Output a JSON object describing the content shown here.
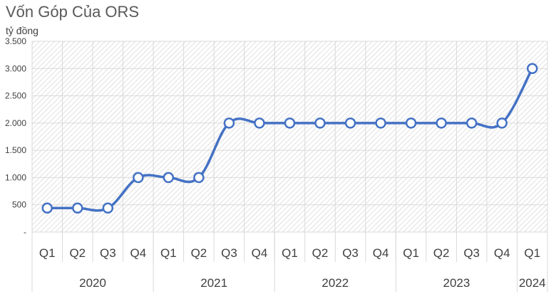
{
  "chart_data": {
    "type": "line",
    "title": "Vốn Góp Của ORS",
    "unit_label": "tỷ đồng",
    "categories": [
      "Q1",
      "Q2",
      "Q3",
      "Q4",
      "Q1",
      "Q2",
      "Q3",
      "Q4",
      "Q1",
      "Q2",
      "Q3",
      "Q4",
      "Q1",
      "Q2",
      "Q3",
      "Q4",
      "Q1"
    ],
    "years": [
      {
        "label": "2020",
        "quarters": 4
      },
      {
        "label": "2021",
        "quarters": 4
      },
      {
        "label": "2022",
        "quarters": 4
      },
      {
        "label": "2023",
        "quarters": 4
      },
      {
        "label": "2024",
        "quarters": 1
      }
    ],
    "values": [
      440,
      440,
      440,
      1000,
      1000,
      1000,
      2000,
      2000,
      2000,
      2000,
      2000,
      2000,
      2000,
      2000,
      2000,
      2000,
      3000
    ],
    "ylim": [
      0,
      3500
    ],
    "yticks": [
      0,
      500,
      1000,
      1500,
      2000,
      2500,
      3000,
      3500
    ],
    "ytick_labels": [
      "-",
      "500",
      "1.000",
      "1.500",
      "2.000",
      "2.500",
      "3.000",
      "3.500"
    ],
    "line_color": "#4472c4",
    "marker_fill": "#ffffff",
    "grid": true,
    "smooth": true
  }
}
